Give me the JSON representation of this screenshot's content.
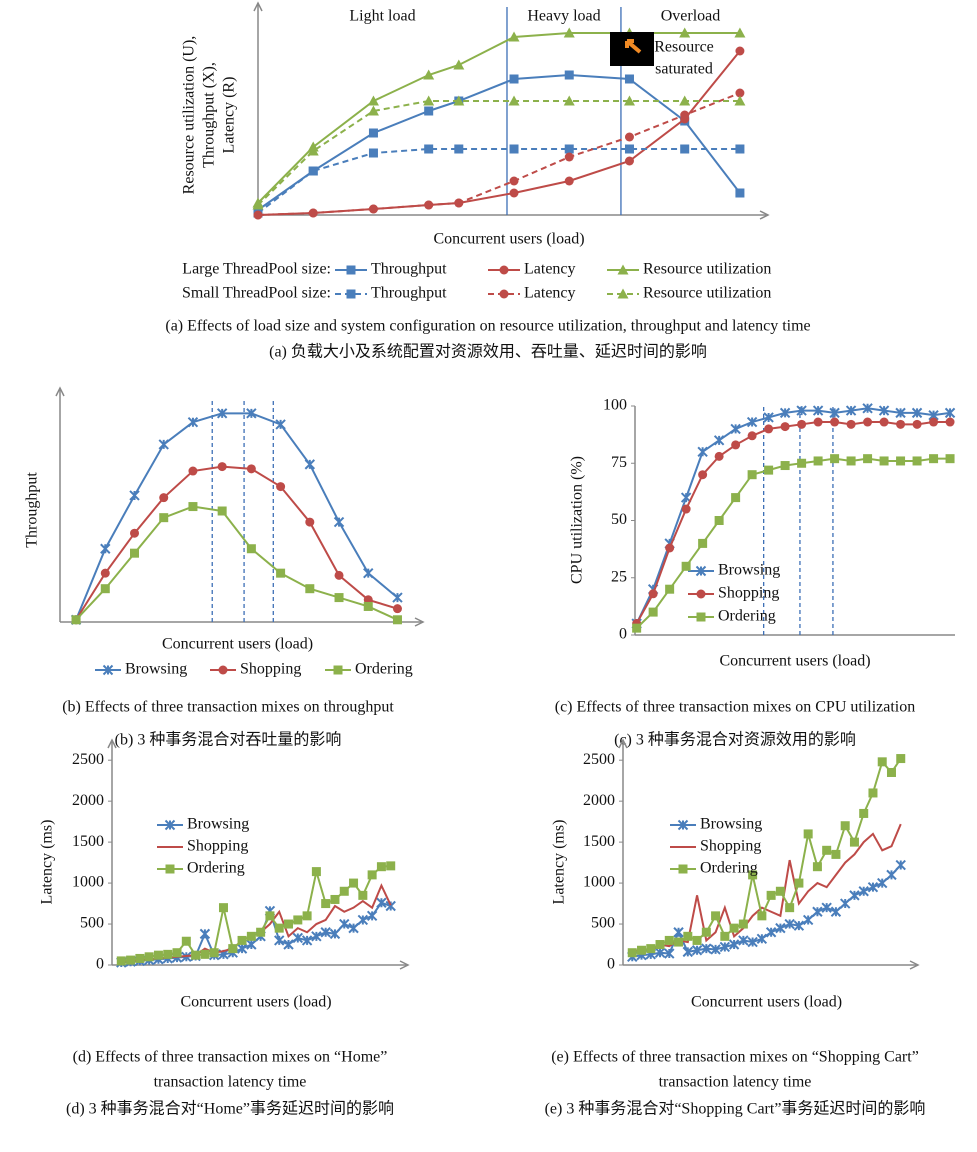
{
  "chart_data": [
    {
      "type": "line",
      "xlabel": "Concurrent users (load)",
      "ylabel": [
        "Resource utilization (U),",
        "Throughput (X),",
        "Latency (R)"
      ],
      "x": [
        0,
        11,
        23,
        34,
        40,
        51,
        62,
        74,
        85,
        96
      ],
      "xlim": [
        0,
        100
      ],
      "ylim": [
        0,
        100
      ],
      "axis_arrows": true,
      "vlines": [
        49.6,
        72.3
      ],
      "vline_style": "solid",
      "regions": [
        "Light load",
        "Heavy load",
        "Overload"
      ],
      "annotation": [
        "Resource",
        "saturated"
      ],
      "legend_titles": [
        "Large ThreadPool size:",
        "Small ThreadPool size:"
      ],
      "series": [
        {
          "name": "Throughput",
          "color": "#4a7ebb",
          "marker": "square",
          "dashed": false,
          "values": [
            2.5,
            22,
            41,
            52,
            57,
            68,
            70,
            68,
            47,
            11
          ]
        },
        {
          "name": "Latency",
          "color": "#be4b48",
          "marker": "circle",
          "dashed": false,
          "values": [
            0,
            1,
            3,
            5,
            6,
            11,
            17,
            27,
            48,
            82
          ]
        },
        {
          "name": "Resource utilization",
          "color": "#8cb14b",
          "marker": "triangle",
          "dashed": false,
          "values": [
            6,
            34,
            57,
            70,
            75,
            89,
            91,
            91,
            91,
            91
          ]
        },
        {
          "name": "Throughput",
          "color": "#4a7ebb",
          "marker": "square",
          "dashed": true,
          "values": [
            1,
            22,
            31,
            33,
            33,
            33,
            33,
            33,
            33,
            33
          ]
        },
        {
          "name": "Latency",
          "color": "#be4b48",
          "marker": "circle",
          "dashed": true,
          "values": [
            0,
            1,
            3,
            5,
            6,
            17,
            29,
            39,
            50,
            61
          ]
        },
        {
          "name": "Resource utilization",
          "color": "#8cb14b",
          "marker": "triangle",
          "dashed": true,
          "values": [
            5,
            32,
            52,
            57,
            57,
            57,
            57,
            57,
            57,
            57
          ]
        }
      ],
      "caption": [
        "(a) Effects of load size and system configuration on resource utilization, throughput and latency time",
        "(a)  负载大小及系统配置对资源效用、吞吐量、延迟时间的影响"
      ]
    },
    {
      "type": "line",
      "xlabel": "Concurrent users (load)",
      "ylabel": [
        "Throughput"
      ],
      "x": [
        1,
        2,
        3,
        4,
        5,
        6,
        7,
        8,
        9,
        10,
        11,
        12
      ],
      "xlim": [
        0.45,
        12.6
      ],
      "ylim": [
        0,
        100
      ],
      "axis_arrows": true,
      "vlines": [
        5.66,
        6.75,
        7.75
      ],
      "vline_style": "dashed",
      "series": [
        {
          "name": "Browsing",
          "color": "#4a7ebb",
          "marker": "x",
          "dashed": false,
          "values": [
            1,
            33,
            57,
            80,
            90,
            94,
            94,
            89,
            71,
            45,
            22,
            11
          ]
        },
        {
          "name": "Shopping",
          "color": "#be4b48",
          "marker": "circle",
          "dashed": false,
          "values": [
            1,
            22,
            40,
            56,
            68,
            70,
            69,
            61,
            45,
            21,
            10,
            6
          ]
        },
        {
          "name": "Ordering",
          "color": "#8cb14b",
          "marker": "square",
          "dashed": false,
          "values": [
            1,
            15,
            31,
            47,
            52,
            50,
            33,
            22,
            15,
            11,
            7,
            1
          ]
        }
      ],
      "caption": [
        "(b) Effects of three transaction mixes on throughput",
        "(b) 3 种事务混合对吞吐量的影响"
      ]
    },
    {
      "type": "line",
      "xlabel": "Concurrent users (load)",
      "ylabel": [
        "CPU utilization (%)"
      ],
      "x": [
        1,
        2,
        3,
        4,
        5,
        6,
        7,
        8,
        9,
        10,
        11,
        12,
        13,
        14,
        15,
        16,
        17,
        18,
        19,
        20
      ],
      "xlim": [
        0.9,
        20.3
      ],
      "ylim": [
        0,
        100
      ],
      "yticks": [
        0,
        25,
        50,
        75,
        100
      ],
      "axis_arrows": false,
      "vlines": [
        8.7,
        10.9,
        12.9
      ],
      "vline_style": "dashed",
      "series": [
        {
          "name": "Browsing",
          "color": "#4a7ebb",
          "marker": "x",
          "dashed": false,
          "values": [
            5,
            20,
            40,
            60,
            80,
            85,
            90,
            93,
            95,
            97,
            98,
            98,
            97,
            98,
            99,
            98,
            97,
            97,
            96,
            97
          ]
        },
        {
          "name": "Shopping",
          "color": "#be4b48",
          "marker": "circle",
          "dashed": false,
          "values": [
            5,
            18,
            38,
            55,
            70,
            78,
            83,
            87,
            90,
            91,
            92,
            93,
            93,
            92,
            93,
            93,
            92,
            92,
            93,
            93
          ]
        },
        {
          "name": "Ordering",
          "color": "#8cb14b",
          "marker": "square",
          "dashed": false,
          "values": [
            3,
            10,
            20,
            30,
            40,
            50,
            60,
            70,
            72,
            74,
            75,
            76,
            77,
            76,
            77,
            76,
            76,
            76,
            77,
            77
          ]
        }
      ],
      "caption": [
        "(c) Effects of three transaction mixes on CPU utilization",
        "(c) 3 种事务混合对资源效用的影响"
      ]
    },
    {
      "type": "line",
      "xlabel": "Concurrent users (load)",
      "ylabel": [
        "Latency (ms)"
      ],
      "x": [
        1,
        2,
        3,
        4,
        5,
        6,
        7,
        8,
        9,
        10,
        11,
        12,
        13,
        14,
        15,
        16,
        17,
        18,
        19,
        20,
        21,
        22,
        23,
        24,
        25,
        26,
        27,
        28,
        29,
        30
      ],
      "xlim": [
        0,
        31
      ],
      "ylim": [
        0,
        2600
      ],
      "yticks": [
        0,
        500,
        1000,
        1500,
        2000,
        2500
      ],
      "axis_arrows": true,
      "series": [
        {
          "name": "Browsing",
          "color": "#4a7ebb",
          "marker": "x",
          "dashed": false,
          "values": [
            30,
            40,
            50,
            60,
            70,
            80,
            90,
            100,
            110,
            380,
            120,
            130,
            150,
            200,
            250,
            350,
            660,
            300,
            250,
            330,
            300,
            350,
            400,
            380,
            500,
            450,
            550,
            600,
            760,
            720
          ]
        },
        {
          "name": "Shopping",
          "color": "#be4b48",
          "marker": "none",
          "dashed": false,
          "values": [
            40,
            50,
            60,
            70,
            80,
            90,
            100,
            110,
            120,
            200,
            150,
            170,
            200,
            300,
            350,
            400,
            500,
            650,
            350,
            450,
            400,
            500,
            550,
            720,
            650,
            700,
            780,
            700,
            970,
            730
          ]
        },
        {
          "name": "Ordering",
          "color": "#8cb14b",
          "marker": "square",
          "dashed": false,
          "values": [
            50,
            60,
            80,
            100,
            120,
            130,
            150,
            290,
            120,
            130,
            150,
            700,
            200,
            300,
            350,
            400,
            600,
            450,
            500,
            550,
            600,
            1140,
            750,
            800,
            900,
            1000,
            850,
            1100,
            1200,
            1210
          ]
        }
      ],
      "caption": [
        "(d) Effects of three transaction mixes on “Home”",
        "transaction latency time",
        "(d) 3 种事务混合对“Home”事务延迟时间的影响"
      ]
    },
    {
      "type": "line",
      "xlabel": "Concurrent users (load)",
      "ylabel": [
        "Latency (ms)"
      ],
      "x": [
        1,
        2,
        3,
        4,
        5,
        6,
        7,
        8,
        9,
        10,
        11,
        12,
        13,
        14,
        15,
        16,
        17,
        18,
        19,
        20,
        21,
        22,
        23,
        24,
        25,
        26,
        27,
        28,
        29,
        30
      ],
      "xlim": [
        0,
        31
      ],
      "ylim": [
        0,
        2600
      ],
      "yticks": [
        0,
        500,
        1000,
        1500,
        2000,
        2500
      ],
      "axis_arrows": true,
      "series": [
        {
          "name": "Browsing",
          "color": "#4a7ebb",
          "marker": "x",
          "dashed": false,
          "values": [
            100,
            120,
            130,
            150,
            140,
            400,
            160,
            180,
            200,
            190,
            220,
            250,
            300,
            280,
            320,
            400,
            450,
            500,
            480,
            550,
            650,
            700,
            650,
            750,
            850,
            900,
            950,
            1000,
            1100,
            1220
          ]
        },
        {
          "name": "Shopping",
          "color": "#be4b48",
          "marker": "none",
          "dashed": false,
          "values": [
            150,
            200,
            180,
            250,
            230,
            300,
            280,
            850,
            300,
            400,
            700,
            350,
            450,
            600,
            700,
            650,
            600,
            1280,
            750,
            900,
            1000,
            950,
            1100,
            1250,
            1350,
            1500,
            1600,
            1400,
            1450,
            1720
          ]
        },
        {
          "name": "Ordering",
          "color": "#8cb14b",
          "marker": "square",
          "dashed": false,
          "values": [
            150,
            180,
            200,
            250,
            300,
            280,
            350,
            300,
            400,
            600,
            350,
            450,
            500,
            1100,
            600,
            850,
            900,
            700,
            1000,
            1600,
            1200,
            1400,
            1350,
            1700,
            1500,
            1850,
            2100,
            2480,
            2350,
            2520
          ]
        }
      ],
      "caption": [
        "(e) Effects of three transaction mixes on “Shopping Cart”",
        "transaction latency time",
        "(e) 3 种事务混合对“Shopping Cart”事务延迟时间的影响"
      ]
    }
  ]
}
